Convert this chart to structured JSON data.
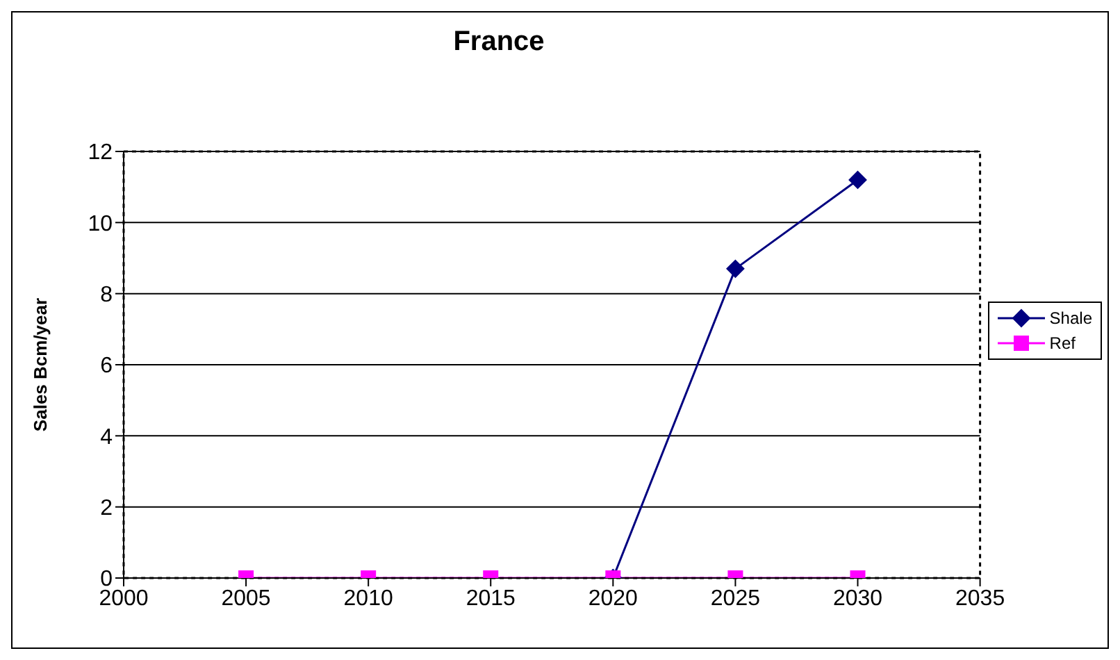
{
  "chart_data": {
    "type": "line",
    "title": "France",
    "ylabel": "Sales Bcm/year",
    "x": [
      2005,
      2010,
      2015,
      2020,
      2025,
      2030
    ],
    "series": [
      {
        "name": "Shale",
        "color": "#000080",
        "marker": "diamond",
        "values": [
          null,
          null,
          null,
          0,
          8.7,
          11.2
        ]
      },
      {
        "name": "Ref",
        "color": "#ff00ff",
        "marker": "square",
        "values": [
          0,
          0,
          0,
          0,
          0,
          0
        ]
      }
    ],
    "xlim": [
      2000,
      2035
    ],
    "xticks": [
      2000,
      2005,
      2010,
      2015,
      2020,
      2025,
      2030,
      2035
    ],
    "ylim": [
      0,
      12
    ],
    "yticks": [
      0,
      2,
      4,
      6,
      8,
      10,
      12
    ],
    "grid": "y",
    "legend": "right",
    "line_style": "solid"
  }
}
